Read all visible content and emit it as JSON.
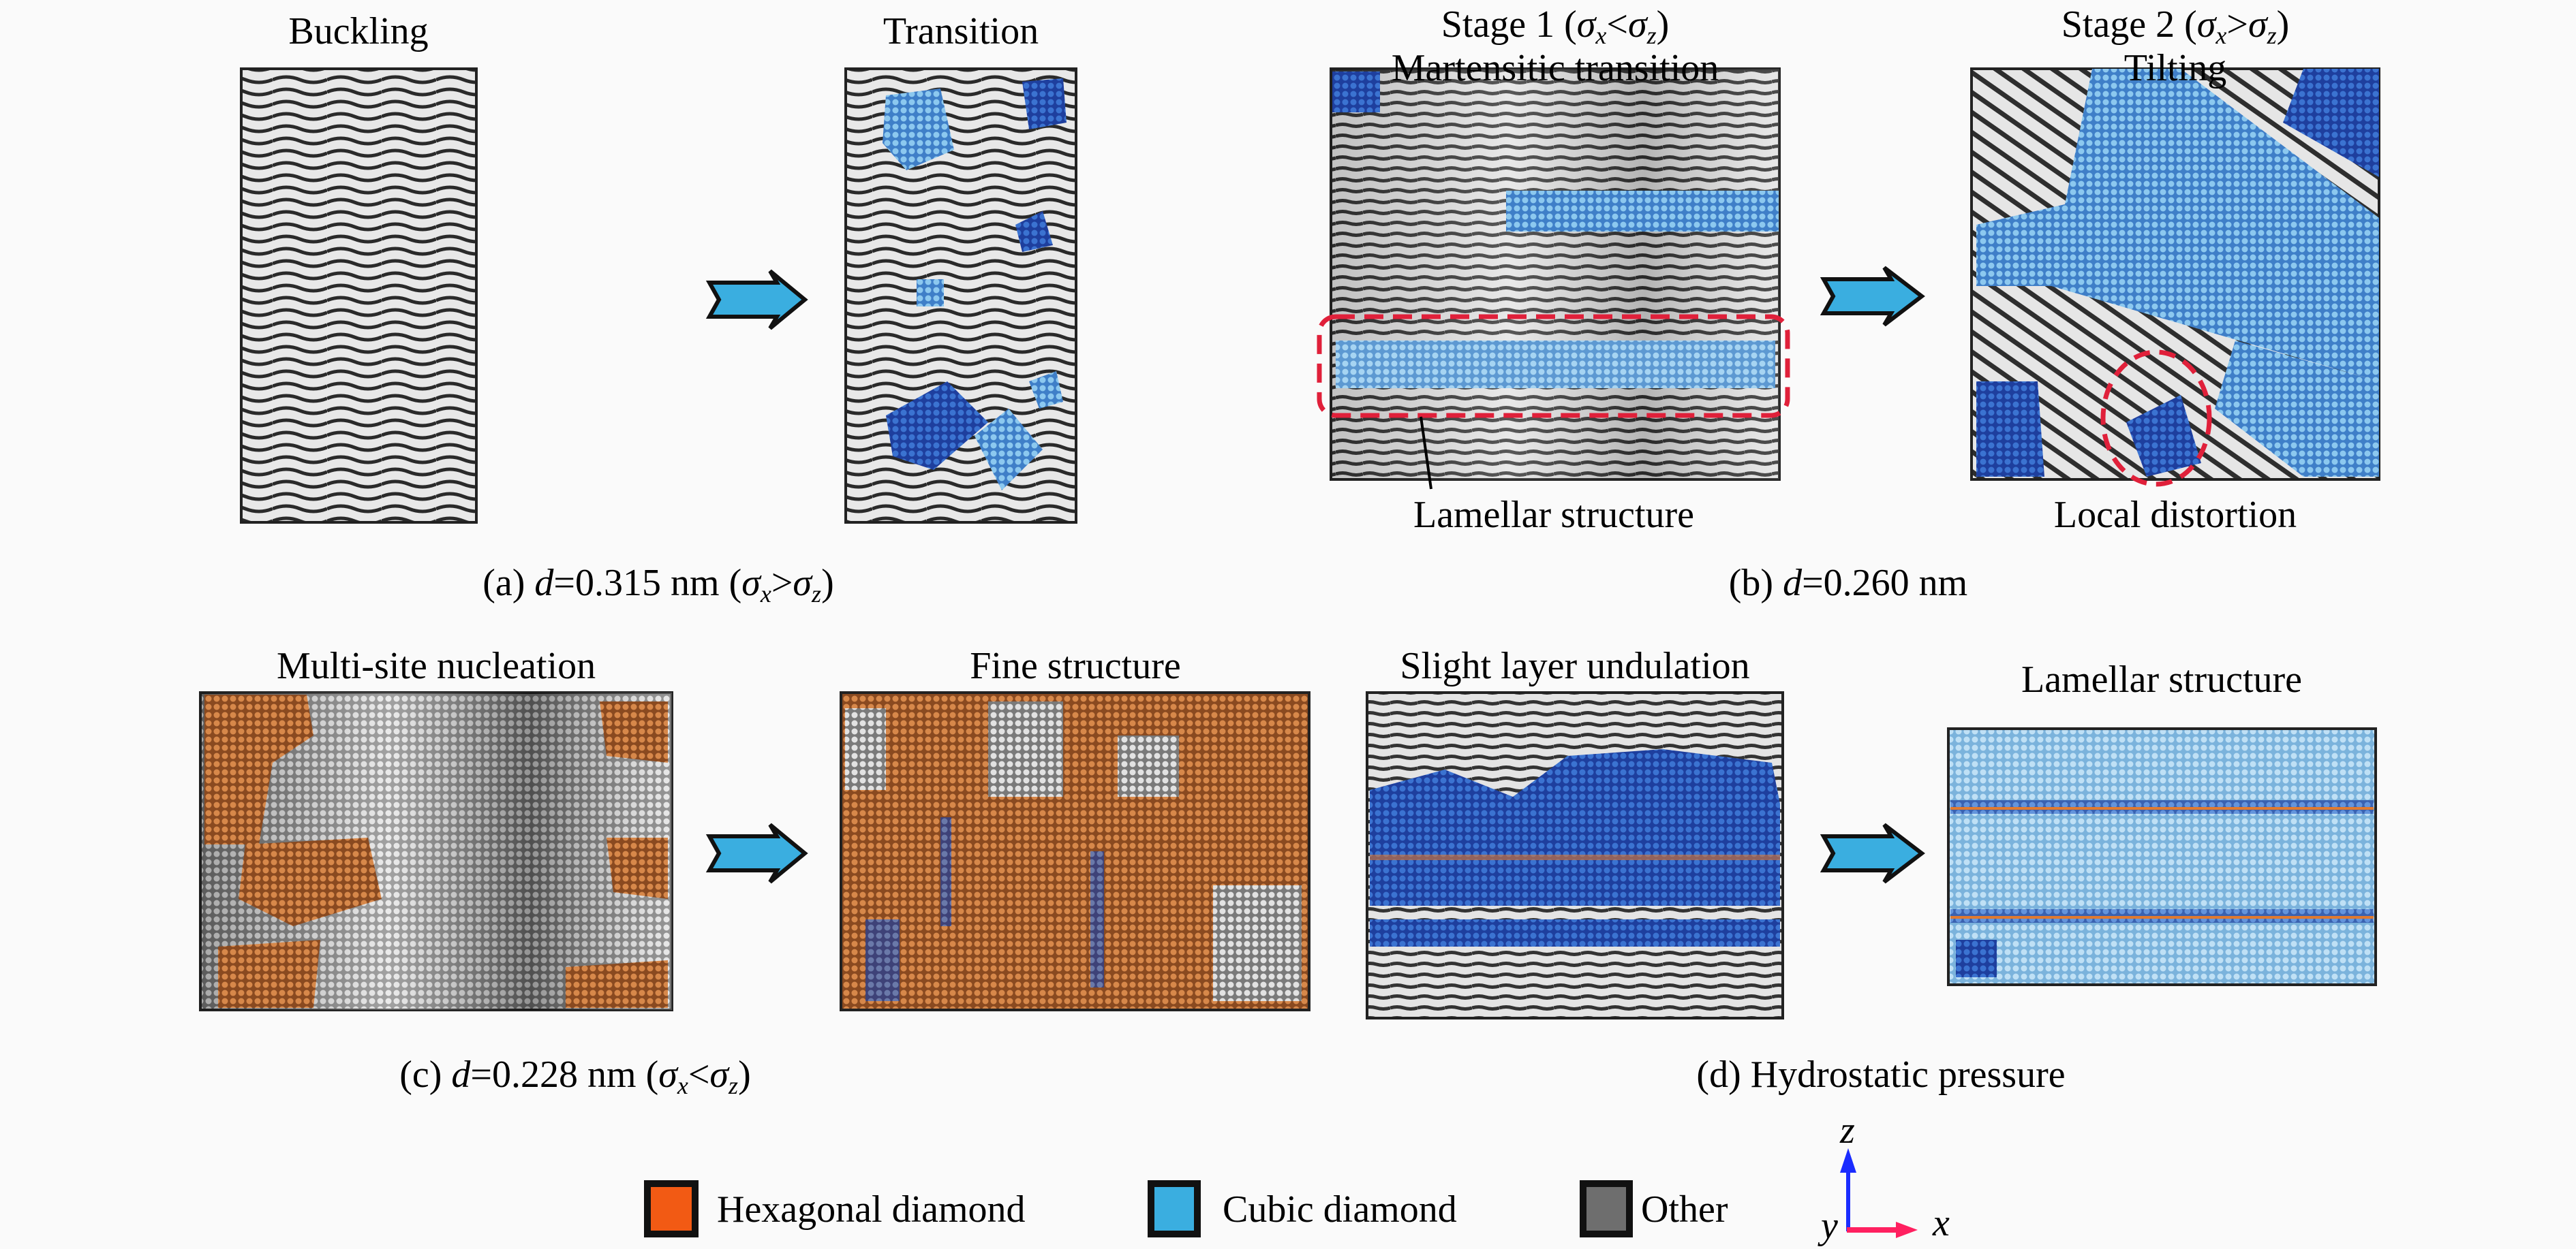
{
  "panels": {
    "a": {
      "left_title": "Buckling",
      "right_title": "Transition",
      "caption_prefix": "(a) ",
      "caption_var": "d",
      "caption_value": "=0.315 nm",
      "caption_condition": "(σx>σz)"
    },
    "b": {
      "left_title_line1": "Stage 1 (σx<σz)",
      "left_title_line2": "Martensitic transition",
      "right_title_line1": "Stage 2 (σx>σz)",
      "right_title_line2": "Tilting",
      "left_annotation": "Lamellar structure",
      "right_annotation": "Local distortion",
      "caption_prefix": "(b) ",
      "caption_var": "d",
      "caption_value": "=0.260 nm"
    },
    "c": {
      "left_title": "Multi-site nucleation",
      "right_title": "Fine structure",
      "caption_prefix": "(c) ",
      "caption_var": "d",
      "caption_value": "=0.228 nm",
      "caption_condition": "(σx<σz)"
    },
    "d": {
      "left_title": "Slight layer undulation",
      "right_title": "Lamellar structure",
      "caption": "(d) Hydrostatic pressure"
    }
  },
  "legend": [
    {
      "label": "Hexagonal diamond",
      "color": "#f25a14"
    },
    {
      "label": "Cubic diamond",
      "color": "#3aaee0"
    },
    {
      "label": "Other",
      "color": "#6e6e6e"
    }
  ],
  "axes": {
    "z": "z",
    "x": "x",
    "y": "y",
    "z_color": "#1a2cff",
    "x_color": "#ff2060"
  },
  "colors": {
    "arrow_fill": "#3aaee0",
    "annotation_red": "#e0203a"
  }
}
